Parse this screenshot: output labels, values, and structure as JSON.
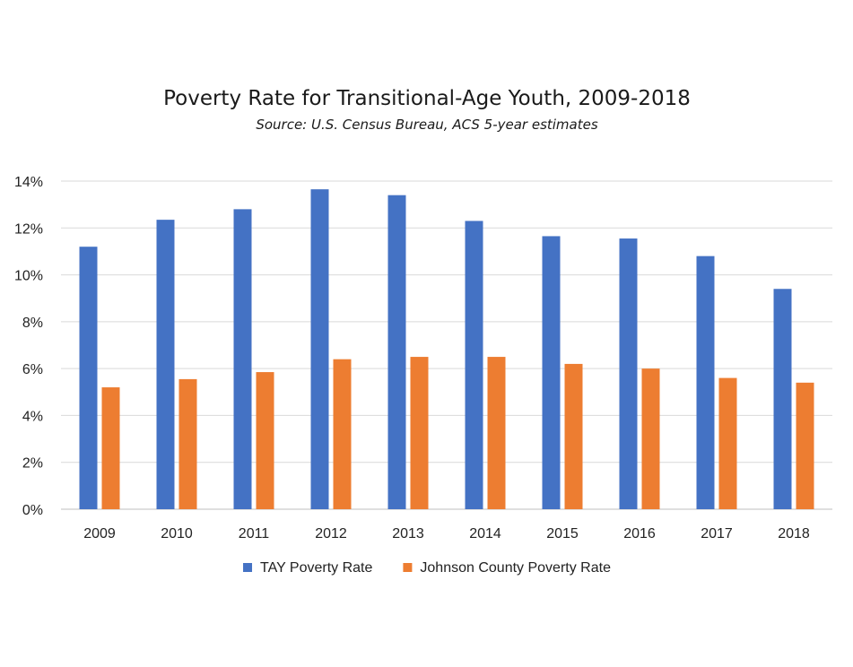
{
  "chart_data": {
    "type": "bar",
    "title": "Poverty Rate for Transitional-Age Youth, 2009-2018",
    "subtitle": "Source: U.S. Census Bureau, ACS 5-year estimates",
    "xlabel": "",
    "ylabel": "",
    "categories": [
      "2009",
      "2010",
      "2011",
      "2012",
      "2013",
      "2014",
      "2015",
      "2016",
      "2017",
      "2018"
    ],
    "series": [
      {
        "name": "TAY Poverty Rate",
        "color": "#4472C4",
        "values": [
          11.2,
          12.35,
          12.8,
          13.65,
          13.4,
          12.3,
          11.65,
          11.55,
          10.8,
          9.4
        ]
      },
      {
        "name": "Johnson County Poverty Rate",
        "color": "#ED7D31",
        "values": [
          5.2,
          5.55,
          5.85,
          6.4,
          6.5,
          6.5,
          6.2,
          6.0,
          5.6,
          5.4
        ]
      }
    ],
    "ylim": [
      0,
      14
    ],
    "yticks": [
      0,
      2,
      4,
      6,
      8,
      10,
      12,
      14
    ],
    "ytick_labels": [
      "0%",
      "2%",
      "4%",
      "6%",
      "8%",
      "10%",
      "12%",
      "14%"
    ],
    "grid": true,
    "legend_position": "bottom"
  }
}
